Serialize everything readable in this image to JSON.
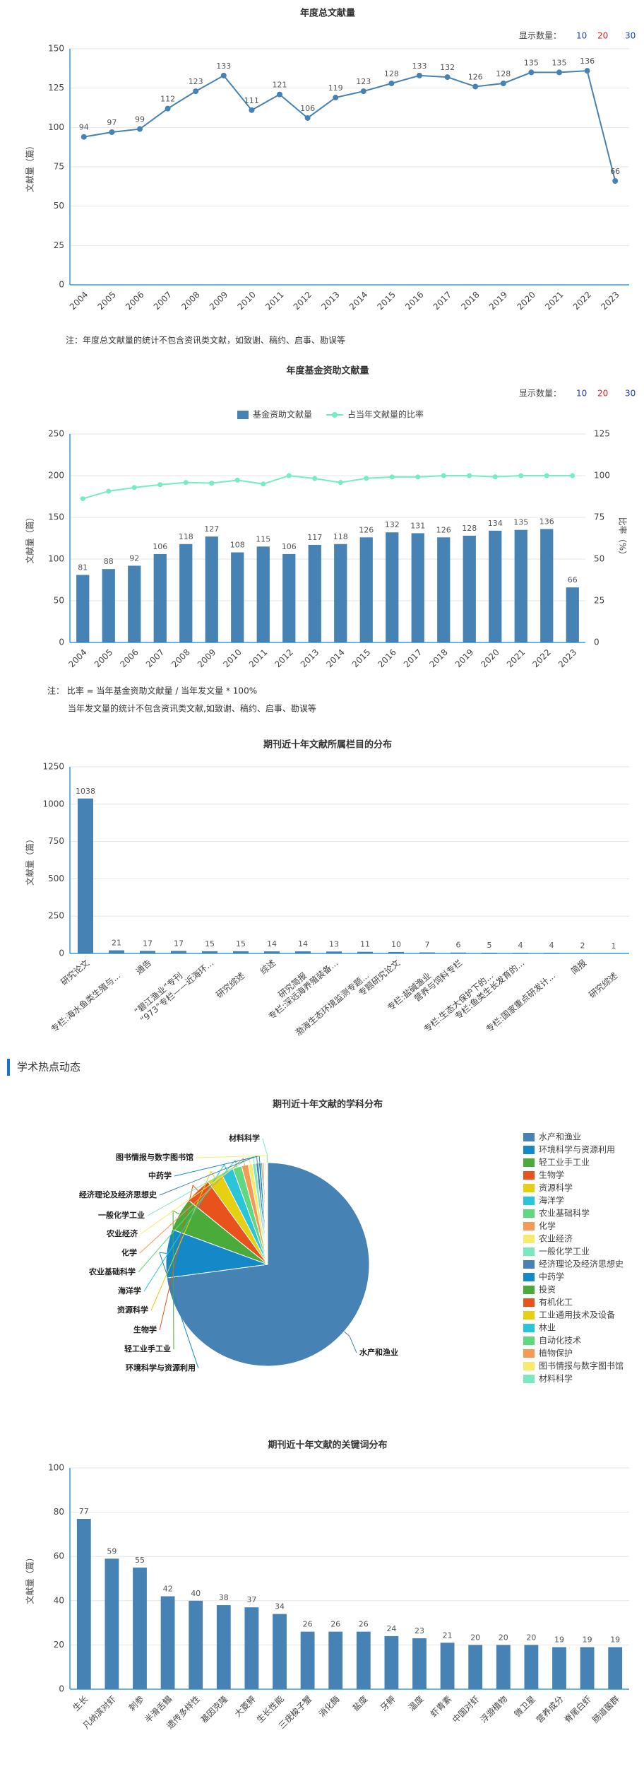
{
  "page": {
    "display_label": "显示数量：",
    "display_options": [
      10,
      20,
      30
    ],
    "note_1": "注：年度总文献量的统计不包含资讯类文献，如致谢、稿约、启事、勘误等",
    "note_2": "注： 比率 = 当年基金资助文献量 / 当年发文量 * 100%",
    "note_3": "当年发文量的统计不包含资讯类文献,如致谢、稿约、启事、勘误等",
    "section_title": "学术热点动态"
  },
  "chart_data": [
    {
      "type": "line",
      "title": "年度总文献量",
      "y_label": "文献量（篇）",
      "categories": [
        "2004",
        "2005",
        "2006",
        "2007",
        "2008",
        "2009",
        "2010",
        "2011",
        "2012",
        "2013",
        "2014",
        "2015",
        "2016",
        "2017",
        "2018",
        "2019",
        "2020",
        "2021",
        "2022",
        "2023"
      ],
      "values": [
        94,
        97,
        99,
        112,
        123,
        133,
        111,
        121,
        106,
        119,
        123,
        128,
        133,
        132,
        126,
        128,
        135,
        135,
        136,
        66
      ],
      "color": "#4682b4",
      "ylim": [
        0,
        150
      ],
      "yticks": [
        0,
        25,
        50,
        75,
        100,
        125,
        150
      ],
      "grid": true
    },
    {
      "type": "bar_line",
      "title": "年度基金资助文献量",
      "y_label": "文献量（篇）",
      "y2_label": "比率（%）",
      "categories": [
        "2004",
        "2005",
        "2006",
        "2007",
        "2008",
        "2009",
        "2010",
        "2011",
        "2012",
        "2013",
        "2014",
        "2015",
        "2016",
        "2017",
        "2018",
        "2019",
        "2020",
        "2021",
        "2022",
        "2023"
      ],
      "series": [
        {
          "name": "基金资助文献量",
          "color": "#4682b4",
          "values": [
            81,
            88,
            92,
            106,
            118,
            127,
            108,
            115,
            106,
            117,
            118,
            126,
            132,
            131,
            126,
            128,
            134,
            135,
            136,
            66
          ]
        },
        {
          "name": "占当年文献量的比率",
          "color": "#74ecc4",
          "axis": "y2",
          "values": [
            86.2,
            90.7,
            92.9,
            94.6,
            95.9,
            95.5,
            97.3,
            95.0,
            100,
            98.3,
            95.9,
            98.4,
            99.2,
            99.2,
            100,
            100,
            99.3,
            100,
            100,
            100
          ]
        }
      ],
      "ylim": [
        0,
        250
      ],
      "yticks": [
        0,
        50,
        100,
        150,
        200,
        250
      ],
      "y2lim": [
        0,
        125
      ],
      "y2ticks": [
        0,
        25,
        50,
        75,
        100,
        125
      ],
      "grid": true
    },
    {
      "type": "bar",
      "title": "期刊近十年文献所属栏目的分布",
      "y_label": "文献量（篇）",
      "categories": [
        "研究论文",
        "专栏:海水鱼类生殖与...",
        "通告",
        "“碧江渔业”专刊",
        "“973”专栏——近海环...",
        "研究综述",
        "综述",
        "研究简报",
        "专栏:深远海养殖装备...",
        "渤海生态环境监测专题...",
        "专题研究论文",
        "专栏:盐碱渔业",
        "营养与饲料专栏",
        "专栏:生态大保护下的...",
        "专栏:鱼类生长发育的...",
        "专栏:国家重点研发计...",
        "简报",
        "研究综述"
      ],
      "values": [
        1038,
        21,
        17,
        17,
        15,
        15,
        14,
        14,
        13,
        11,
        10,
        7,
        6,
        5,
        4,
        4,
        2,
        1
      ],
      "color": "#4682b4",
      "ylim": [
        0,
        1250
      ],
      "yticks": [
        0,
        250,
        500,
        750,
        1000,
        1250
      ],
      "grid": true
    },
    {
      "type": "pie",
      "title": "期刊近十年文献的学科分布",
      "categories": [
        "水产和渔业",
        "环境科学与资源利用",
        "轻工业手工业",
        "生物学",
        "资源科学",
        "海洋学",
        "农业基础科学",
        "化学",
        "农业经济",
        "一般化学工业",
        "经济理论及经济思想史",
        "中药学",
        "投资",
        "有机化工",
        "工业通用技术及设备",
        "林业",
        "自动化技术",
        "植物保护",
        "图书情报与数字图书馆",
        "材料科学"
      ],
      "values": [
        1040,
        110,
        75,
        60,
        35,
        28,
        20,
        15,
        10,
        8,
        6,
        5,
        3,
        3,
        2,
        2,
        2,
        1,
        1,
        1
      ],
      "colors": [
        "#4682b4",
        "#1589c8",
        "#4aab3a",
        "#e8521d",
        "#e5d012",
        "#28c6d8",
        "#5fd880",
        "#f59a55",
        "#f5ec6d",
        "#7be8c0",
        "#4682b4",
        "#1589c8",
        "#4aab3a",
        "#e8521d",
        "#e5d012",
        "#28c6d8",
        "#5fd880",
        "#f59a55",
        "#f5ec6d",
        "#7be8c0"
      ]
    },
    {
      "type": "bar",
      "title": "期刊近十年文献的关键词分布",
      "y_label": "文献量（篇）",
      "categories": [
        "生长",
        "凡纳滨对虾",
        "刺参",
        "半滑舌鳎",
        "遗传多样性",
        "基因克隆",
        "大菱鲆",
        "生长性能",
        "三疣梭子蟹",
        "消化酶",
        "盐度",
        "牙鲆",
        "温度",
        "虾青素",
        "中国对虾",
        "浮游植物",
        "微卫星",
        "营养成分",
        "脊尾白虾",
        "肠道菌群"
      ],
      "values": [
        77,
        59,
        55,
        42,
        40,
        38,
        37,
        34,
        26,
        26,
        26,
        24,
        23,
        21,
        20,
        20,
        20,
        19,
        19,
        19
      ],
      "color": "#4682b4",
      "ylim": [
        0,
        100
      ],
      "yticks": [
        0,
        20,
        40,
        60,
        80,
        100
      ],
      "grid": true
    }
  ]
}
